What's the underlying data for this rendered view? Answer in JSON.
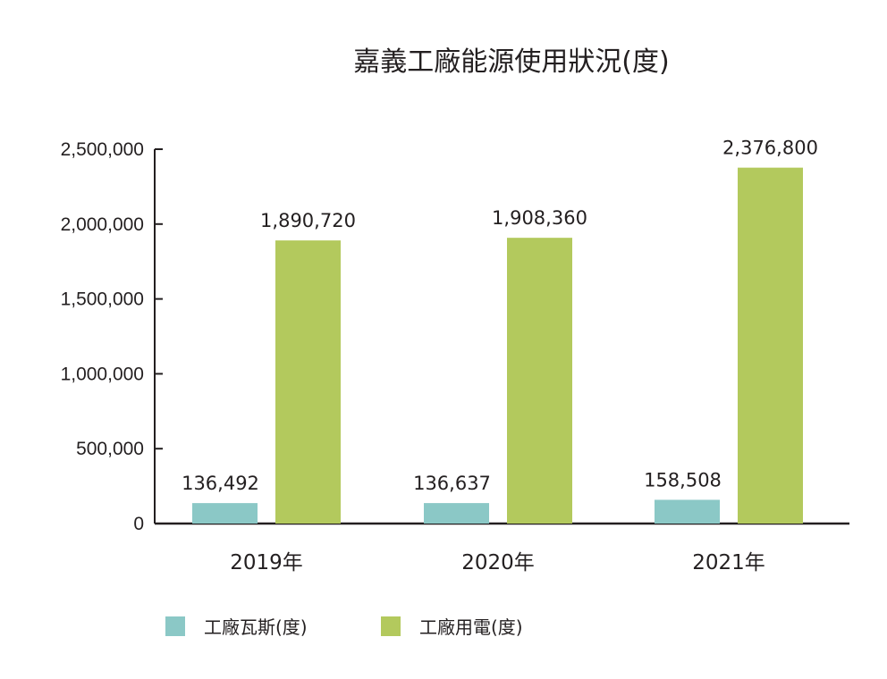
{
  "chart_data": {
    "type": "bar",
    "title": "嘉義工廠能源使用狀況(度)",
    "categories": [
      "2019年",
      "2020年",
      "2021年"
    ],
    "series": [
      {
        "name": "工廠瓦斯(度)",
        "color": "#8bc8c6",
        "values": [
          136492,
          136637,
          158508
        ],
        "labels": [
          "136,492",
          "136,637",
          "158,508"
        ]
      },
      {
        "name": "工廠用電(度)",
        "color": "#b3c95d",
        "values": [
          1890720,
          1908360,
          2376800
        ],
        "labels": [
          "1,890,720",
          "1,908,360",
          "2,376,800"
        ]
      }
    ],
    "yticks": [
      0,
      500000,
      1000000,
      1500000,
      2000000,
      2500000
    ],
    "ytick_labels": [
      "0",
      "500,000",
      "1,000,000",
      "1,500,000",
      "2,000,000",
      "2,500,000"
    ],
    "ylim": [
      0,
      2500000
    ],
    "grid": false,
    "legend_position": "bottom-left"
  }
}
